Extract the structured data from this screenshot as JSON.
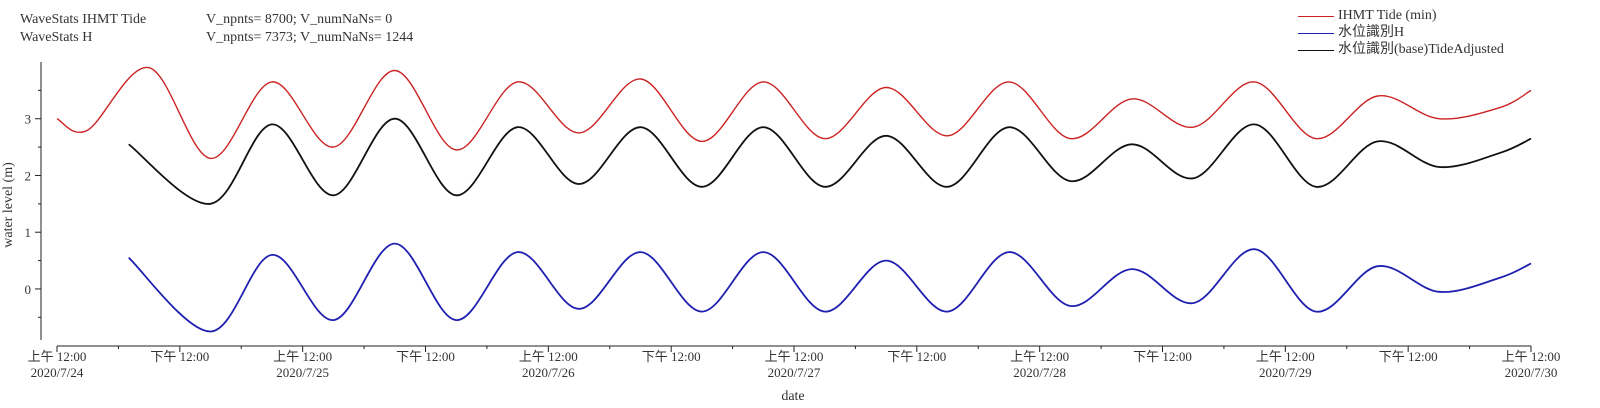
{
  "annotations": [
    {
      "name": "WaveStats IHMT Tide",
      "stats": "V_npnts= 8700; V_numNaNs= 0"
    },
    {
      "name": "WaveStats H",
      "stats": "V_npnts= 7373; V_numNaNs= 1244"
    }
  ],
  "colors": {
    "tide": "#cc2222",
    "h": "#1f1fb0",
    "adjusted": "#111111",
    "axis": "#222222"
  },
  "chart_data": {
    "type": "line",
    "title": "",
    "xlabel": "date",
    "ylabel": "water level (m)",
    "xlim": [
      "2020-07-24 00:00",
      "2020-07-30 00:00"
    ],
    "ylim": [
      -0.9,
      4.0
    ],
    "grid": false,
    "legend_position": "top-right",
    "x_ticks": [
      {
        "t": "2020-07-24 00:00",
        "line1": "上午 12:00",
        "line2": "2020/7/24"
      },
      {
        "t": "2020-07-24 12:00",
        "line1": "下午 12:00",
        "line2": ""
      },
      {
        "t": "2020-07-25 00:00",
        "line1": "上午 12:00",
        "line2": "2020/7/25"
      },
      {
        "t": "2020-07-25 12:00",
        "line1": "下午 12:00",
        "line2": ""
      },
      {
        "t": "2020-07-26 00:00",
        "line1": "上午 12:00",
        "line2": "2020/7/26"
      },
      {
        "t": "2020-07-26 12:00",
        "line1": "下午 12:00",
        "line2": ""
      },
      {
        "t": "2020-07-27 00:00",
        "line1": "上午 12:00",
        "line2": "2020/7/27"
      },
      {
        "t": "2020-07-27 12:00",
        "line1": "下午 12:00",
        "line2": ""
      },
      {
        "t": "2020-07-28 00:00",
        "line1": "上午 12:00",
        "line2": "2020/7/28"
      },
      {
        "t": "2020-07-28 12:00",
        "line1": "下午 12:00",
        "line2": ""
      },
      {
        "t": "2020-07-29 00:00",
        "line1": "上午 12:00",
        "line2": "2020/7/29"
      },
      {
        "t": "2020-07-29 12:00",
        "line1": "下午 12:00",
        "line2": ""
      },
      {
        "t": "2020-07-30 00:00",
        "line1": "上午 12:00",
        "line2": "2020/7/30"
      }
    ],
    "y_ticks": [
      0,
      1,
      2,
      3
    ],
    "series": [
      {
        "name": "IHMT Tide (min)",
        "color": "#cc2222",
        "x": [
          "2020-07-24 00:00",
          "2020-07-24 03:00",
          "2020-07-24 09:00",
          "2020-07-24 15:00",
          "2020-07-24 21:00",
          "2020-07-25 03:00",
          "2020-07-25 09:00",
          "2020-07-25 15:00",
          "2020-07-25 21:00",
          "2020-07-26 03:00",
          "2020-07-26 09:00",
          "2020-07-26 15:00",
          "2020-07-26 21:00",
          "2020-07-27 03:00",
          "2020-07-27 09:00",
          "2020-07-27 15:00",
          "2020-07-27 21:00",
          "2020-07-28 03:00",
          "2020-07-28 09:00",
          "2020-07-28 15:00",
          "2020-07-28 21:00",
          "2020-07-29 03:00",
          "2020-07-29 09:00",
          "2020-07-29 15:00",
          "2020-07-29 21:00",
          "2020-07-30 00:00"
        ],
        "y": [
          3.0,
          2.8,
          3.9,
          2.3,
          3.65,
          2.5,
          3.85,
          2.45,
          3.65,
          2.75,
          3.7,
          2.6,
          3.65,
          2.65,
          3.55,
          2.7,
          3.65,
          2.65,
          3.35,
          2.85,
          3.65,
          2.65,
          3.4,
          3.0,
          3.2,
          3.5
        ]
      },
      {
        "name": "水位識別H",
        "color": "#1f1fb0",
        "x": [
          "2020-07-24 07:00",
          "2020-07-24 15:00",
          "2020-07-24 21:00",
          "2020-07-25 03:00",
          "2020-07-25 09:00",
          "2020-07-25 15:00",
          "2020-07-25 21:00",
          "2020-07-26 03:00",
          "2020-07-26 09:00",
          "2020-07-26 15:00",
          "2020-07-26 21:00",
          "2020-07-27 03:00",
          "2020-07-27 09:00",
          "2020-07-27 15:00",
          "2020-07-27 21:00",
          "2020-07-28 03:00",
          "2020-07-28 09:00",
          "2020-07-28 15:00",
          "2020-07-28 21:00",
          "2020-07-29 03:00",
          "2020-07-29 09:00",
          "2020-07-29 15:00",
          "2020-07-29 21:00",
          "2020-07-30 00:00"
        ],
        "y": [
          0.55,
          -0.75,
          0.6,
          -0.55,
          0.8,
          -0.55,
          0.65,
          -0.35,
          0.65,
          -0.4,
          0.65,
          -0.4,
          0.5,
          -0.4,
          0.65,
          -0.3,
          0.35,
          -0.25,
          0.7,
          -0.4,
          0.4,
          -0.05,
          0.2,
          0.45
        ]
      },
      {
        "name": "水位識別(base)TideAdjusted",
        "color": "#111111",
        "x": [
          "2020-07-24 07:00",
          "2020-07-24 15:00",
          "2020-07-24 21:00",
          "2020-07-25 03:00",
          "2020-07-25 09:00",
          "2020-07-25 15:00",
          "2020-07-25 21:00",
          "2020-07-26 03:00",
          "2020-07-26 09:00",
          "2020-07-26 15:00",
          "2020-07-26 21:00",
          "2020-07-27 03:00",
          "2020-07-27 09:00",
          "2020-07-27 15:00",
          "2020-07-27 21:00",
          "2020-07-28 03:00",
          "2020-07-28 09:00",
          "2020-07-28 15:00",
          "2020-07-28 21:00",
          "2020-07-29 03:00",
          "2020-07-29 09:00",
          "2020-07-29 15:00",
          "2020-07-29 21:00",
          "2020-07-30 00:00"
        ],
        "y": [
          2.55,
          1.5,
          2.9,
          1.65,
          3.0,
          1.65,
          2.85,
          1.85,
          2.85,
          1.8,
          2.85,
          1.8,
          2.7,
          1.8,
          2.85,
          1.9,
          2.55,
          1.95,
          2.9,
          1.8,
          2.6,
          2.15,
          2.4,
          2.65
        ]
      }
    ]
  }
}
